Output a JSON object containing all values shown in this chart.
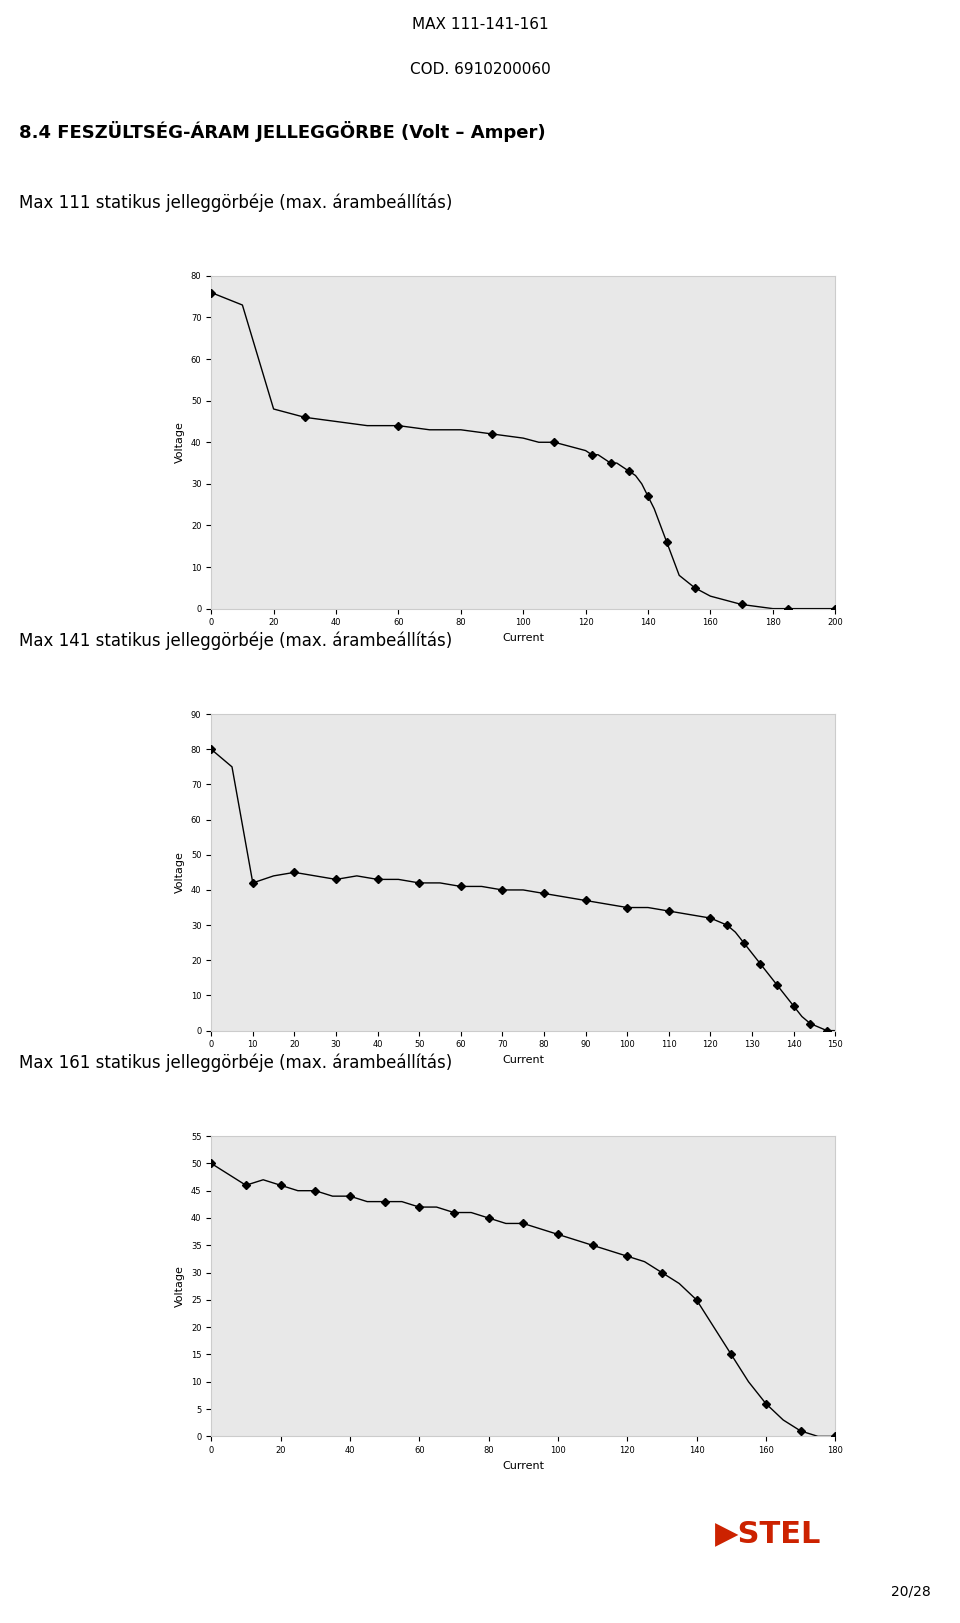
{
  "page_title1": "MAX 111-141-161",
  "page_title2": "COD. 6910200060",
  "section_title": "8.4 FESZÜLTSÉG-ÁRAM JELLEGGÖRBE (Volt – Amper)",
  "subtitle1": "Max 111 statikus jelleggörbéje (max. árambeállítás)",
  "subtitle2": "Max 141 statikus jelleggörbéje (max. árambeállítás)",
  "subtitle3": "Max 161 statikus jelleggörbéje (max. árambeállítás)",
  "page_number": "20/28",
  "chart1": {
    "xlabel": "Current",
    "ylabel": "Voltage",
    "xlim": [
      0,
      200
    ],
    "ylim": [
      0,
      80
    ],
    "xticks": [
      0,
      20,
      40,
      60,
      80,
      100,
      120,
      140,
      160,
      180,
      200
    ],
    "yticks": [
      0,
      10,
      20,
      30,
      40,
      50,
      60,
      70,
      80
    ],
    "current": [
      0,
      10,
      20,
      30,
      40,
      50,
      60,
      70,
      80,
      90,
      100,
      105,
      110,
      115,
      120,
      122,
      124,
      126,
      128,
      130,
      132,
      134,
      136,
      138,
      140,
      142,
      144,
      146,
      148,
      150,
      155,
      160,
      165,
      170,
      175,
      180,
      185,
      190,
      195,
      200
    ],
    "voltage": [
      76,
      73,
      48,
      46,
      45,
      44,
      44,
      43,
      43,
      42,
      41,
      40,
      40,
      39,
      38,
      37,
      37,
      36,
      35,
      35,
      34,
      33,
      32,
      30,
      27,
      24,
      20,
      16,
      12,
      8,
      5,
      3,
      2,
      1,
      0.5,
      0,
      0,
      0,
      0,
      0
    ]
  },
  "chart2": {
    "xlabel": "Current",
    "ylabel": "Voltage",
    "xlim": [
      0,
      150
    ],
    "ylim": [
      0,
      90
    ],
    "xticks": [
      0,
      10,
      20,
      30,
      40,
      50,
      60,
      70,
      80,
      90,
      100,
      110,
      120,
      130,
      140,
      150
    ],
    "yticks": [
      0,
      10,
      20,
      30,
      40,
      50,
      60,
      70,
      80,
      90
    ],
    "current": [
      0,
      5,
      10,
      15,
      20,
      25,
      30,
      35,
      40,
      45,
      50,
      55,
      60,
      65,
      70,
      75,
      80,
      85,
      90,
      95,
      100,
      105,
      110,
      115,
      120,
      122,
      124,
      126,
      128,
      130,
      132,
      134,
      136,
      138,
      140,
      142,
      144,
      146,
      148,
      150
    ],
    "voltage": [
      80,
      75,
      42,
      44,
      45,
      44,
      43,
      44,
      43,
      43,
      42,
      42,
      41,
      41,
      40,
      40,
      39,
      38,
      37,
      36,
      35,
      35,
      34,
      33,
      32,
      31,
      30,
      28,
      25,
      22,
      19,
      16,
      13,
      10,
      7,
      4,
      2,
      1,
      0,
      0
    ]
  },
  "chart3": {
    "xlabel": "Current",
    "ylabel": "Voltage",
    "xlim": [
      0,
      180
    ],
    "ylim": [
      0,
      55
    ],
    "xticks": [
      0,
      20,
      40,
      60,
      80,
      100,
      120,
      140,
      160,
      180
    ],
    "yticks": [
      0,
      5,
      10,
      15,
      20,
      25,
      30,
      35,
      40,
      45,
      50,
      55
    ],
    "current": [
      0,
      5,
      10,
      15,
      20,
      25,
      30,
      35,
      40,
      45,
      50,
      55,
      60,
      65,
      70,
      75,
      80,
      85,
      90,
      95,
      100,
      105,
      110,
      115,
      120,
      125,
      130,
      135,
      140,
      145,
      150,
      155,
      160,
      165,
      170,
      175,
      180
    ],
    "voltage": [
      50,
      48,
      46,
      47,
      46,
      45,
      45,
      44,
      44,
      43,
      43,
      43,
      42,
      42,
      41,
      41,
      40,
      39,
      39,
      38,
      37,
      36,
      35,
      34,
      33,
      32,
      30,
      28,
      25,
      20,
      15,
      10,
      6,
      3,
      1,
      0,
      0
    ]
  },
  "background_color": "#ffffff",
  "plot_bg_color": "#e8e8e8",
  "line_color": "#000000",
  "marker": "D",
  "marker_size": 4,
  "text_color": "#000000"
}
